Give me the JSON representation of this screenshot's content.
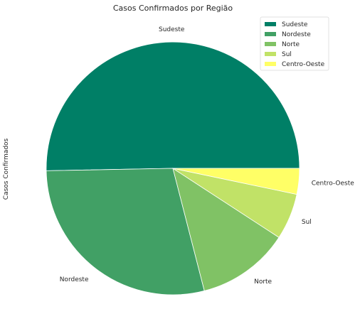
{
  "chart_data": {
    "type": "pie",
    "title": "Casos Confirmados por Região",
    "ylabel": "Casos Confirmados",
    "categories": [
      "Sudeste",
      "Nordeste",
      "Norte",
      "Sul",
      "Centro-Oeste"
    ],
    "values": [
      50.3,
      28.7,
      11.8,
      5.9,
      3.3
    ],
    "colors": [
      "#007f66",
      "#41a065",
      "#80c265",
      "#c1e267",
      "#ffff66"
    ],
    "start_angle_deg": 0,
    "direction": "counterclockwise",
    "legend": {
      "position": "top-right",
      "entries": [
        "Sudeste",
        "Nordeste",
        "Norte",
        "Sul",
        "Centro-Oeste"
      ]
    }
  }
}
